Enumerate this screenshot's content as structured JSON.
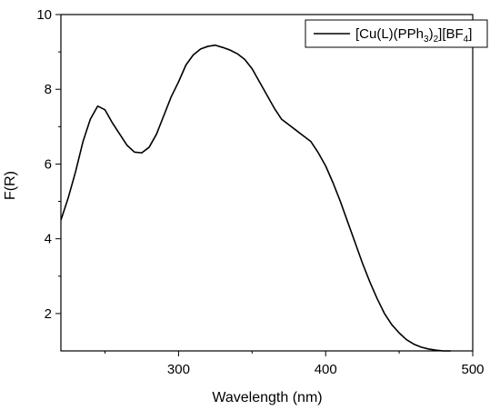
{
  "chart_data": {
    "type": "line",
    "title": "",
    "xlabel": "Wavelength (nm)",
    "ylabel": "F(R)",
    "xlim": [
      220,
      500
    ],
    "ylim": [
      1,
      10
    ],
    "xticks": [
      300,
      400,
      500
    ],
    "yticks": [
      2,
      4,
      6,
      8,
      10
    ],
    "grid": false,
    "legend_position": "top-right",
    "series": [
      {
        "name": "[Cu(L)(PPh3)2][BF4]",
        "legend": {
          "main": "[Cu(L)(PPh",
          "sub1": "3",
          "mid": ")",
          "sub2": "2",
          "rest": "][BF",
          "sub3": "4",
          "end": "]"
        },
        "color": "#000000",
        "x": [
          220,
          225,
          230,
          235,
          240,
          245,
          250,
          255,
          260,
          265,
          270,
          275,
          280,
          285,
          290,
          295,
          300,
          305,
          310,
          315,
          320,
          325,
          330,
          335,
          340,
          345,
          350,
          355,
          360,
          365,
          370,
          375,
          380,
          385,
          390,
          395,
          400,
          405,
          410,
          415,
          420,
          425,
          430,
          435,
          440,
          445,
          450,
          455,
          460,
          465,
          470,
          475,
          480,
          485
        ],
        "y": [
          4.5,
          5.1,
          5.8,
          6.6,
          7.2,
          7.55,
          7.45,
          7.1,
          6.8,
          6.5,
          6.32,
          6.3,
          6.45,
          6.8,
          7.3,
          7.8,
          8.2,
          8.65,
          8.92,
          9.08,
          9.15,
          9.18,
          9.12,
          9.05,
          8.95,
          8.8,
          8.55,
          8.2,
          7.85,
          7.5,
          7.2,
          7.05,
          6.9,
          6.75,
          6.6,
          6.3,
          5.95,
          5.5,
          5.0,
          4.45,
          3.9,
          3.35,
          2.85,
          2.4,
          2.0,
          1.7,
          1.48,
          1.3,
          1.18,
          1.1,
          1.05,
          1.02,
          1.0,
          1.0
        ]
      }
    ]
  }
}
